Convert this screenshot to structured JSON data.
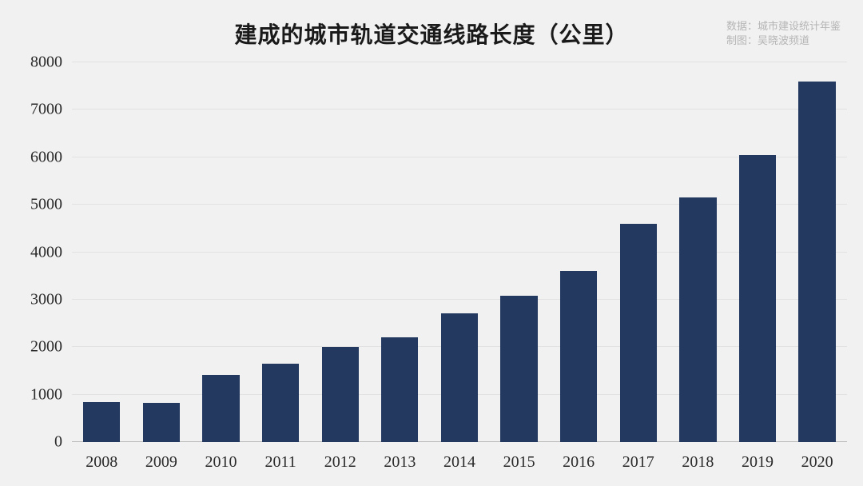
{
  "chart": {
    "type": "bar",
    "title": "建成的城市轨道交通线路长度（公里）",
    "credits": {
      "line1": "数据：城市建设统计年鉴",
      "line2": "制图：吴晓波频道"
    },
    "background_color": "#f1f1f1",
    "bar_color": "#24395f",
    "grid_color": "#e2e2e2",
    "baseline_color": "#bdbdbd",
    "title_color": "#1a1a1a",
    "axis_label_color": "#2a2a2a",
    "credits_color": "#b5b5b5",
    "title_fontsize": 28,
    "axis_fontsize": 20,
    "credits_fontsize": 13,
    "ylim": [
      0,
      8000
    ],
    "ytick_step": 1000,
    "yticks": [
      0,
      1000,
      2000,
      3000,
      4000,
      5000,
      6000,
      7000,
      8000
    ],
    "bar_width_ratio": 0.62,
    "categories": [
      "2008",
      "2009",
      "2010",
      "2011",
      "2012",
      "2013",
      "2014",
      "2015",
      "2016",
      "2017",
      "2018",
      "2019",
      "2020"
    ],
    "values": [
      850,
      830,
      1420,
      1650,
      2000,
      2200,
      2720,
      3080,
      3600,
      4600,
      5150,
      6050,
      7600
    ]
  }
}
